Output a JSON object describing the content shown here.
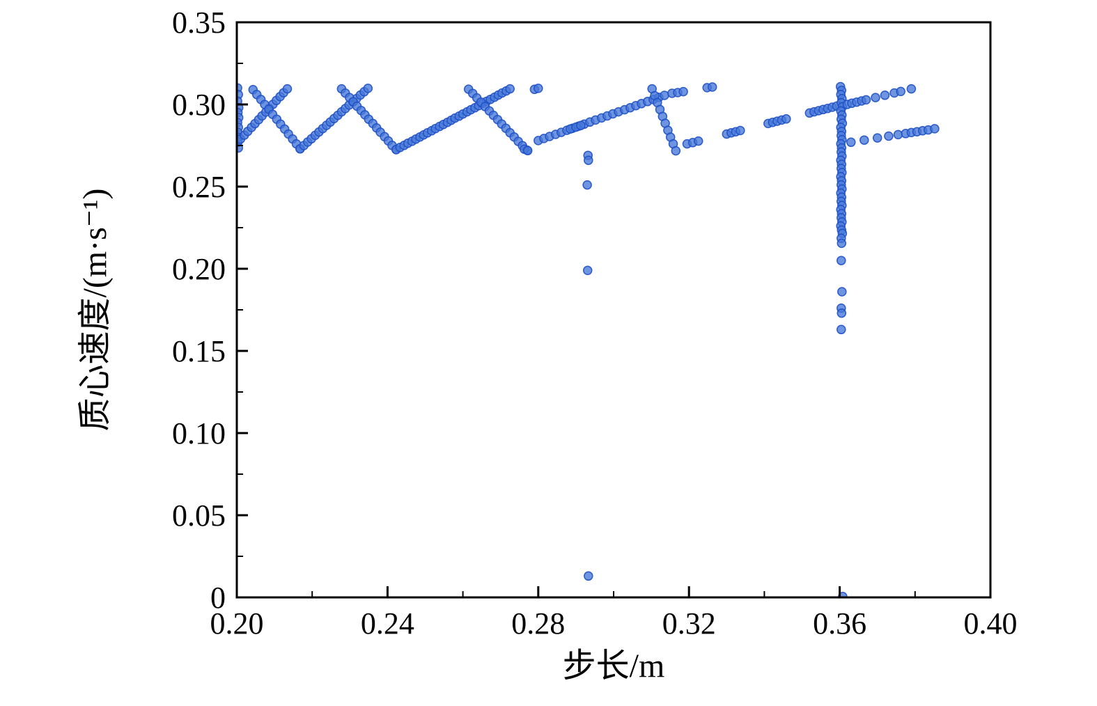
{
  "page": {
    "background": "#ffffff"
  },
  "chart_data": {
    "type": "scatter",
    "title": "",
    "xlabel": "步长/m",
    "ylabel": "质心速度/(m·s⁻¹)",
    "xlim": [
      0.2,
      0.4
    ],
    "ylim": [
      0,
      0.35
    ],
    "xticks": [
      0.2,
      0.24,
      0.28,
      0.32,
      0.36,
      0.4
    ],
    "xtick_labels": [
      "0.20",
      "0.24",
      "0.28",
      "0.32",
      "0.36",
      "0.40"
    ],
    "xminor_ticks": [
      0.22,
      0.26,
      0.3,
      0.34,
      0.38
    ],
    "yticks": [
      0,
      0.05,
      0.1,
      0.15,
      0.2,
      0.25,
      0.3,
      0.35
    ],
    "ytick_labels": [
      "0",
      "0.05",
      "0.10",
      "0.15",
      "0.20",
      "0.25",
      "0.30",
      "0.35"
    ],
    "yminor_ticks": [
      0.025,
      0.075,
      0.125,
      0.175,
      0.225,
      0.275,
      0.325
    ],
    "grid": false,
    "legend": null,
    "marker": {
      "fill": "#4677d8",
      "edge": "#1d4fc4",
      "radius": 6,
      "opacity": 0.78
    },
    "points": [
      [
        0.2002,
        0.31
      ],
      [
        0.2004,
        0.306
      ],
      [
        0.2002,
        0.302
      ],
      [
        0.2005,
        0.298
      ],
      [
        0.2003,
        0.295
      ],
      [
        0.2005,
        0.292
      ],
      [
        0.2002,
        0.289
      ],
      [
        0.2004,
        0.286
      ],
      [
        0.2003,
        0.283
      ],
      [
        0.2005,
        0.28
      ],
      [
        0.2003,
        0.277
      ],
      [
        0.2004,
        0.2735
      ],
      [
        0.201,
        0.279
      ],
      [
        0.202,
        0.2813
      ],
      [
        0.2029,
        0.2836
      ],
      [
        0.2039,
        0.286
      ],
      [
        0.2048,
        0.2883
      ],
      [
        0.2058,
        0.2907
      ],
      [
        0.2067,
        0.293
      ],
      [
        0.2077,
        0.2954
      ],
      [
        0.2086,
        0.2977
      ],
      [
        0.2096,
        0.3001
      ],
      [
        0.2105,
        0.3024
      ],
      [
        0.2115,
        0.3048
      ],
      [
        0.2124,
        0.3071
      ],
      [
        0.2134,
        0.3095
      ],
      [
        0.2043,
        0.309
      ],
      [
        0.2053,
        0.306
      ],
      [
        0.2064,
        0.303
      ],
      [
        0.2074,
        0.3
      ],
      [
        0.2085,
        0.297
      ],
      [
        0.2095,
        0.294
      ],
      [
        0.2106,
        0.291
      ],
      [
        0.2116,
        0.288
      ],
      [
        0.2127,
        0.285
      ],
      [
        0.2137,
        0.282
      ],
      [
        0.2148,
        0.279
      ],
      [
        0.2158,
        0.276
      ],
      [
        0.2168,
        0.273
      ],
      [
        0.2168,
        0.273
      ],
      [
        0.2178,
        0.275
      ],
      [
        0.2188,
        0.2771
      ],
      [
        0.2198,
        0.2791
      ],
      [
        0.2208,
        0.2812
      ],
      [
        0.2218,
        0.2832
      ],
      [
        0.2228,
        0.2853
      ],
      [
        0.2238,
        0.2873
      ],
      [
        0.2248,
        0.2893
      ],
      [
        0.2258,
        0.2914
      ],
      [
        0.2268,
        0.2934
      ],
      [
        0.2278,
        0.2955
      ],
      [
        0.2288,
        0.2975
      ],
      [
        0.2298,
        0.2996
      ],
      [
        0.2308,
        0.3016
      ],
      [
        0.2318,
        0.3036
      ],
      [
        0.2328,
        0.3057
      ],
      [
        0.2338,
        0.3077
      ],
      [
        0.2348,
        0.3098
      ],
      [
        0.2278,
        0.3095
      ],
      [
        0.2288,
        0.3069
      ],
      [
        0.2299,
        0.3042
      ],
      [
        0.2309,
        0.3016
      ],
      [
        0.2319,
        0.2989
      ],
      [
        0.233,
        0.2963
      ],
      [
        0.234,
        0.2937
      ],
      [
        0.235,
        0.291
      ],
      [
        0.2361,
        0.2884
      ],
      [
        0.2371,
        0.2857
      ],
      [
        0.2381,
        0.2831
      ],
      [
        0.2392,
        0.2804
      ],
      [
        0.2402,
        0.2778
      ],
      [
        0.2412,
        0.2751
      ],
      [
        0.2423,
        0.2725
      ],
      [
        0.2423,
        0.2725
      ],
      [
        0.2433,
        0.2738
      ],
      [
        0.2444,
        0.2751
      ],
      [
        0.2454,
        0.2764
      ],
      [
        0.2465,
        0.2776
      ],
      [
        0.2475,
        0.2789
      ],
      [
        0.2486,
        0.2802
      ],
      [
        0.2496,
        0.2815
      ],
      [
        0.2506,
        0.2827
      ],
      [
        0.2517,
        0.284
      ],
      [
        0.2527,
        0.2853
      ],
      [
        0.2538,
        0.2866
      ],
      [
        0.2548,
        0.2878
      ],
      [
        0.2559,
        0.2891
      ],
      [
        0.2569,
        0.2904
      ],
      [
        0.2579,
        0.2917
      ],
      [
        0.259,
        0.2929
      ],
      [
        0.26,
        0.2942
      ],
      [
        0.2611,
        0.2955
      ],
      [
        0.2621,
        0.2968
      ],
      [
        0.2632,
        0.298
      ],
      [
        0.2642,
        0.2993
      ],
      [
        0.2652,
        0.3006
      ],
      [
        0.2663,
        0.3019
      ],
      [
        0.2673,
        0.3031
      ],
      [
        0.2684,
        0.3044
      ],
      [
        0.2694,
        0.3057
      ],
      [
        0.2704,
        0.307
      ],
      [
        0.2715,
        0.3082
      ],
      [
        0.2725,
        0.3095
      ],
      [
        0.2615,
        0.3093
      ],
      [
        0.2626,
        0.3067
      ],
      [
        0.2637,
        0.304
      ],
      [
        0.2648,
        0.3014
      ],
      [
        0.2659,
        0.2987
      ],
      [
        0.267,
        0.2961
      ],
      [
        0.2681,
        0.2934
      ],
      [
        0.2692,
        0.2908
      ],
      [
        0.2703,
        0.2881
      ],
      [
        0.2714,
        0.2855
      ],
      [
        0.2725,
        0.2828
      ],
      [
        0.2736,
        0.2802
      ],
      [
        0.2747,
        0.2775
      ],
      [
        0.2758,
        0.2749
      ],
      [
        0.277,
        0.2722
      ],
      [
        0.2763,
        0.2728
      ],
      [
        0.2772,
        0.2719
      ],
      [
        0.279,
        0.3092
      ],
      [
        0.28,
        0.3098
      ],
      [
        0.28,
        0.278
      ],
      [
        0.2815,
        0.2793
      ],
      [
        0.283,
        0.2805
      ],
      [
        0.2846,
        0.2818
      ],
      [
        0.2861,
        0.283
      ],
      [
        0.2876,
        0.2843
      ],
      [
        0.2891,
        0.2855
      ],
      [
        0.2907,
        0.2868
      ],
      [
        0.2922,
        0.288
      ],
      [
        0.2937,
        0.2893
      ],
      [
        0.2952,
        0.2905
      ],
      [
        0.2968,
        0.2918
      ],
      [
        0.2983,
        0.293
      ],
      [
        0.2998,
        0.2943
      ],
      [
        0.3013,
        0.2955
      ],
      [
        0.3029,
        0.2968
      ],
      [
        0.3044,
        0.298
      ],
      [
        0.3059,
        0.2993
      ],
      [
        0.3074,
        0.3005
      ],
      [
        0.309,
        0.3018
      ],
      [
        0.3105,
        0.303
      ],
      [
        0.312,
        0.3043
      ],
      [
        0.3135,
        0.3055
      ],
      [
        0.3155,
        0.3068
      ],
      [
        0.2885,
        0.2851
      ],
      [
        0.29,
        0.2862
      ],
      [
        0.2913,
        0.2872
      ],
      [
        0.3102,
        0.3095
      ],
      [
        0.3109,
        0.3053
      ],
      [
        0.3116,
        0.3011
      ],
      [
        0.3123,
        0.2969
      ],
      [
        0.313,
        0.2927
      ],
      [
        0.3137,
        0.2885
      ],
      [
        0.3144,
        0.2843
      ],
      [
        0.3151,
        0.2801
      ],
      [
        0.3158,
        0.276
      ],
      [
        0.3165,
        0.2718
      ],
      [
        0.317,
        0.3072
      ],
      [
        0.3185,
        0.3078
      ],
      [
        0.3248,
        0.3102
      ],
      [
        0.3262,
        0.3106
      ],
      [
        0.3195,
        0.276
      ],
      [
        0.321,
        0.2768
      ],
      [
        0.3225,
        0.2777
      ],
      [
        0.33,
        0.282
      ],
      [
        0.3312,
        0.2827
      ],
      [
        0.3324,
        0.2834
      ],
      [
        0.3336,
        0.2841
      ],
      [
        0.341,
        0.2884
      ],
      [
        0.3422,
        0.2891
      ],
      [
        0.3434,
        0.2898
      ],
      [
        0.3446,
        0.2905
      ],
      [
        0.3458,
        0.2912
      ],
      [
        0.352,
        0.2948
      ],
      [
        0.3532,
        0.2955
      ],
      [
        0.3544,
        0.2962
      ],
      [
        0.3556,
        0.2969
      ],
      [
        0.3568,
        0.2976
      ],
      [
        0.358,
        0.2983
      ],
      [
        0.3592,
        0.299
      ],
      [
        0.3602,
        0.3108
      ],
      [
        0.3605,
        0.3085
      ],
      [
        0.3603,
        0.306
      ],
      [
        0.3606,
        0.3035
      ],
      [
        0.3604,
        0.301
      ],
      [
        0.3607,
        0.2985
      ],
      [
        0.3603,
        0.296
      ],
      [
        0.3606,
        0.2935
      ],
      [
        0.3604,
        0.291
      ],
      [
        0.3607,
        0.2885
      ],
      [
        0.3603,
        0.286
      ],
      [
        0.3605,
        0.2835
      ],
      [
        0.3604,
        0.281
      ],
      [
        0.3606,
        0.2785
      ],
      [
        0.3603,
        0.276
      ],
      [
        0.3605,
        0.2735
      ],
      [
        0.3604,
        0.271
      ],
      [
        0.3606,
        0.2685
      ],
      [
        0.3603,
        0.266
      ],
      [
        0.3605,
        0.2635
      ],
      [
        0.3604,
        0.261
      ],
      [
        0.3606,
        0.2585
      ],
      [
        0.3603,
        0.256
      ],
      [
        0.3605,
        0.2535
      ],
      [
        0.3604,
        0.251
      ],
      [
        0.3606,
        0.2485
      ],
      [
        0.3603,
        0.246
      ],
      [
        0.3605,
        0.2435
      ],
      [
        0.3604,
        0.241
      ],
      [
        0.3606,
        0.2385
      ],
      [
        0.3603,
        0.236
      ],
      [
        0.3605,
        0.2335
      ],
      [
        0.3604,
        0.231
      ],
      [
        0.3606,
        0.2285
      ],
      [
        0.3603,
        0.226
      ],
      [
        0.3605,
        0.2235
      ],
      [
        0.3607,
        0.2215
      ],
      [
        0.3604,
        0.2185
      ],
      [
        0.3605,
        0.2155
      ],
      [
        0.3604,
        0.205
      ],
      [
        0.3606,
        0.186
      ],
      [
        0.3604,
        0.176
      ],
      [
        0.3605,
        0.173
      ],
      [
        0.3604,
        0.163
      ],
      [
        0.3608,
        0.0005
      ],
      [
        0.362,
        0.3
      ],
      [
        0.3632,
        0.3007
      ],
      [
        0.3645,
        0.3014
      ],
      [
        0.3658,
        0.3021
      ],
      [
        0.367,
        0.3028
      ],
      [
        0.3695,
        0.3042
      ],
      [
        0.372,
        0.3056
      ],
      [
        0.3745,
        0.307
      ],
      [
        0.3762,
        0.3079
      ],
      [
        0.379,
        0.3095
      ],
      [
        0.363,
        0.277
      ],
      [
        0.3665,
        0.2783
      ],
      [
        0.37,
        0.2796
      ],
      [
        0.373,
        0.2807
      ],
      [
        0.3755,
        0.2816
      ],
      [
        0.3775,
        0.2823
      ],
      [
        0.379,
        0.2829
      ],
      [
        0.3805,
        0.2834
      ],
      [
        0.382,
        0.284
      ],
      [
        0.3835,
        0.2845
      ],
      [
        0.3852,
        0.2852
      ],
      [
        0.2932,
        0.269
      ],
      [
        0.2933,
        0.266
      ],
      [
        0.293,
        0.251
      ],
      [
        0.2931,
        0.199
      ],
      [
        0.2933,
        0.013
      ]
    ]
  }
}
